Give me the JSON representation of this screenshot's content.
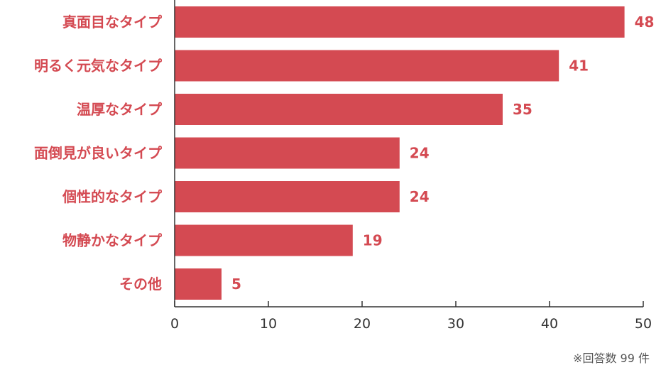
{
  "chart_data": {
    "type": "bar",
    "orientation": "horizontal",
    "categories": [
      "真面目なタイプ",
      "明るく元気なタイプ",
      "温厚なタイプ",
      "面倒見が良いタイプ",
      "個性的なタイプ",
      "物静かなタイプ",
      "その他"
    ],
    "values": [
      48,
      41,
      35,
      24,
      24,
      19,
      5
    ],
    "xlim": [
      0,
      50
    ],
    "xticks": [
      "0",
      "10",
      "20",
      "30",
      "40",
      "50"
    ],
    "bar_color": "#d44a52",
    "label_color": "#d44a52",
    "grid": false
  },
  "note": "※回答数 99 件"
}
